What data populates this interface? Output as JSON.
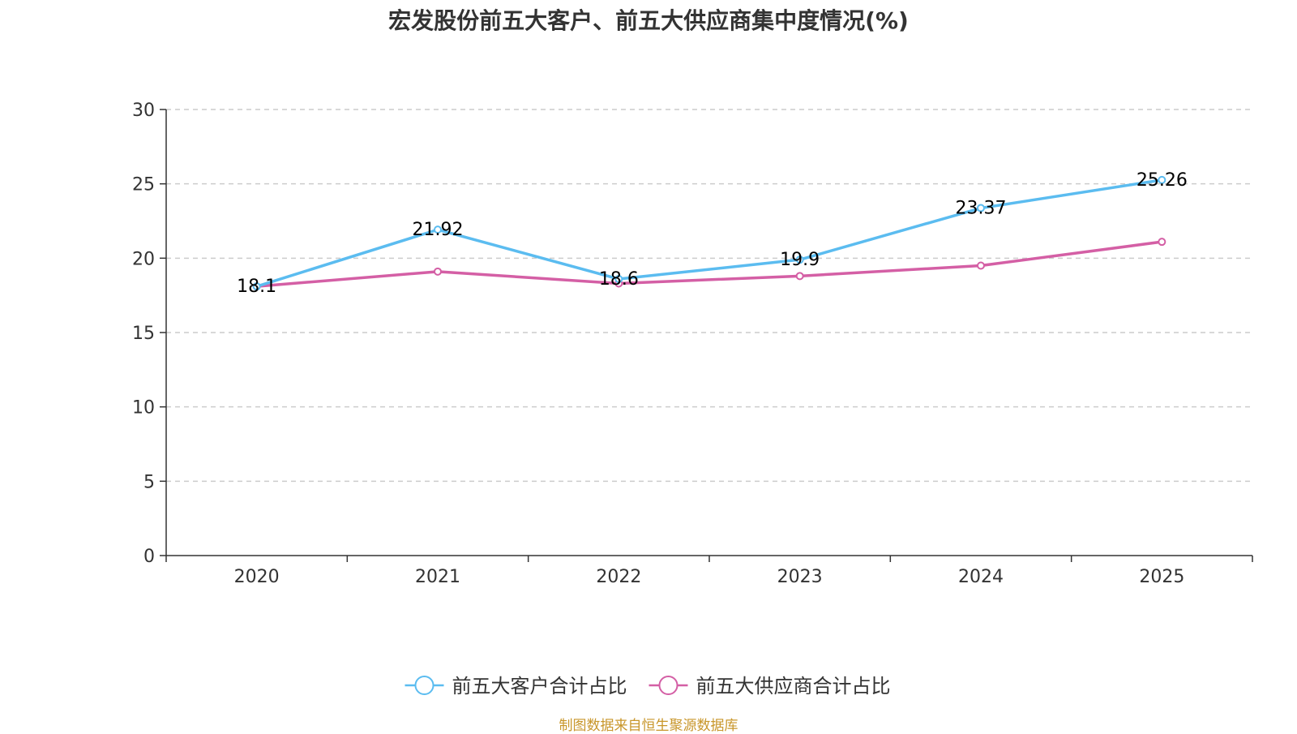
{
  "chart_data": {
    "type": "line",
    "title": "宏发股份前五大客户、前五大供应商集中度情况(%)",
    "categories": [
      "2020",
      "2021",
      "2022",
      "2023",
      "2024",
      "2025"
    ],
    "ylim": [
      0,
      30
    ],
    "yticks": [
      0,
      5,
      10,
      15,
      20,
      25,
      30
    ],
    "grid": true,
    "legend_position": "bottom-center",
    "series": [
      {
        "name": "前五大客户合计占比",
        "color": "#5bbcf0",
        "values": [
          18.1,
          21.92,
          18.6,
          19.9,
          23.37,
          25.26
        ],
        "labels": [
          "18.1",
          "21.92",
          "18.6",
          "19.9",
          "23.37",
          "25.26"
        ]
      },
      {
        "name": "前五大供应商合计占比",
        "color": "#d45fa5",
        "values": [
          18.1,
          19.1,
          18.3,
          18.8,
          19.5,
          21.1
        ],
        "labels": []
      }
    ],
    "source": "制图数据来自恒生聚源数据库"
  }
}
